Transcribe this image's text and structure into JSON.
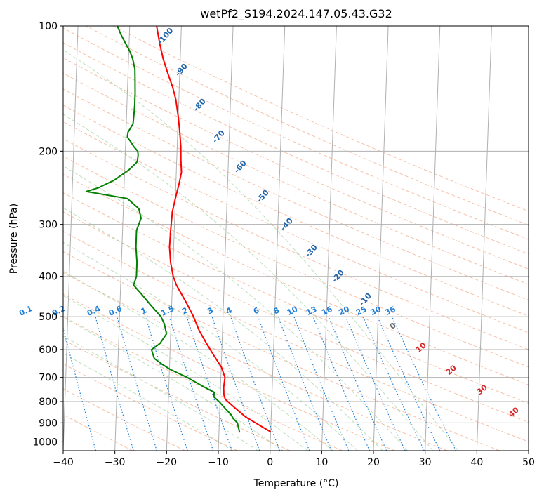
{
  "chart_data": {
    "type": "line",
    "subtype": "skew-T log-P diagram",
    "title": "wetPf2_S194.2024.147.05.43.G32",
    "xlabel": "Temperature (°C)",
    "ylabel": "Pressure (hPa)",
    "xlim": [
      -40,
      50
    ],
    "ylim": [
      1050,
      100
    ],
    "y_scale": "log",
    "x_ticks": [
      -40,
      -30,
      -20,
      -10,
      0,
      10,
      20,
      30,
      40,
      50
    ],
    "y_ticks": [
      100,
      200,
      300,
      400,
      500,
      600,
      700,
      800,
      900,
      1000
    ],
    "grid": true,
    "series": [
      {
        "key": "temperature",
        "color": "#ff0000",
        "points": [
          [
            946,
            0
          ],
          [
            900,
            -3
          ],
          [
            870,
            -5
          ],
          [
            820,
            -7.5
          ],
          [
            790,
            -9
          ],
          [
            770,
            -9.3
          ],
          [
            740,
            -9.4
          ],
          [
            700,
            -9.2
          ],
          [
            660,
            -10
          ],
          [
            620,
            -11.5
          ],
          [
            580,
            -13
          ],
          [
            540,
            -14.5
          ],
          [
            500,
            -15.7
          ],
          [
            460,
            -17.3
          ],
          [
            420,
            -19.2
          ],
          [
            400,
            -19.9
          ],
          [
            370,
            -20.5
          ],
          [
            340,
            -20.8
          ],
          [
            310,
            -20.7
          ],
          [
            280,
            -20.5
          ],
          [
            260,
            -20
          ],
          [
            240,
            -19.4
          ],
          [
            225,
            -19
          ],
          [
            210,
            -19.2
          ],
          [
            195,
            -19.3
          ],
          [
            180,
            -19.6
          ],
          [
            165,
            -20
          ],
          [
            150,
            -20.6
          ],
          [
            140,
            -21.3
          ],
          [
            130,
            -22.3
          ],
          [
            120,
            -23.3
          ],
          [
            110,
            -24.1
          ],
          [
            100,
            -24.8
          ]
        ]
      },
      {
        "key": "dewpoint",
        "color": "#008000",
        "points": [
          [
            950,
            -6
          ],
          [
            900,
            -6.5
          ],
          [
            880,
            -7.3
          ],
          [
            860,
            -7.8
          ],
          [
            830,
            -9
          ],
          [
            800,
            -10.2
          ],
          [
            780,
            -11.2
          ],
          [
            760,
            -11.2
          ],
          [
            740,
            -13
          ],
          [
            700,
            -16.5
          ],
          [
            670,
            -19.8
          ],
          [
            650,
            -21.5
          ],
          [
            630,
            -23
          ],
          [
            600,
            -23.6
          ],
          [
            580,
            -22
          ],
          [
            550,
            -20.8
          ],
          [
            520,
            -21.3
          ],
          [
            500,
            -22
          ],
          [
            470,
            -24
          ],
          [
            440,
            -26
          ],
          [
            420,
            -27.5
          ],
          [
            400,
            -27
          ],
          [
            370,
            -27
          ],
          [
            340,
            -27.3
          ],
          [
            310,
            -27.3
          ],
          [
            290,
            -26.5
          ],
          [
            275,
            -27
          ],
          [
            260,
            -29.3
          ],
          [
            250,
            -37.3
          ],
          [
            245,
            -35
          ],
          [
            235,
            -32
          ],
          [
            222,
            -29.2
          ],
          [
            212,
            -27.6
          ],
          [
            204,
            -27.5
          ],
          [
            200,
            -27.6
          ],
          [
            195,
            -28.4
          ],
          [
            190,
            -29
          ],
          [
            185,
            -29.7
          ],
          [
            180,
            -29.6
          ],
          [
            172,
            -28.7
          ],
          [
            165,
            -28.6
          ],
          [
            155,
            -28.5
          ],
          [
            145,
            -28.5
          ],
          [
            135,
            -28.6
          ],
          [
            127,
            -28.7
          ],
          [
            120,
            -29.2
          ],
          [
            115,
            -29.8
          ],
          [
            110,
            -30.7
          ],
          [
            105,
            -31.6
          ],
          [
            100,
            -32.4
          ]
        ]
      }
    ],
    "reference_lines": {
      "isotherm_step": 10,
      "dry_adiabat_theta_c": [
        -30,
        -20,
        -10,
        0,
        10,
        20,
        30,
        40,
        50,
        60,
        70,
        80,
        90,
        100,
        110,
        120,
        130,
        140,
        150,
        160,
        170,
        180,
        190
      ],
      "moist_adiabat_start_c": [
        -10,
        -5,
        0,
        5,
        10,
        15,
        20,
        25,
        30,
        35
      ],
      "mixing_ratio_g_kg": [
        0.1,
        0.2,
        0.4,
        0.6,
        1,
        1.5,
        2,
        3,
        4,
        6,
        8,
        10,
        13,
        16,
        20,
        25,
        30,
        36
      ]
    },
    "annotations": {
      "blue_labels": [
        "-100",
        "-90",
        "-80",
        "-70",
        "-60",
        "-50",
        "-40",
        "-30",
        "-20",
        "-10"
      ],
      "mixing_ratio_labels": [
        "0.1",
        "0.2",
        "0.4",
        "0.6",
        "1",
        "1.5",
        "2",
        "3",
        "4",
        "6",
        "8",
        "10",
        "13",
        "16",
        "20",
        "25",
        "30",
        "36"
      ],
      "gray_label": "0",
      "red_labels": [
        "10",
        "20",
        "30",
        "40"
      ]
    }
  }
}
